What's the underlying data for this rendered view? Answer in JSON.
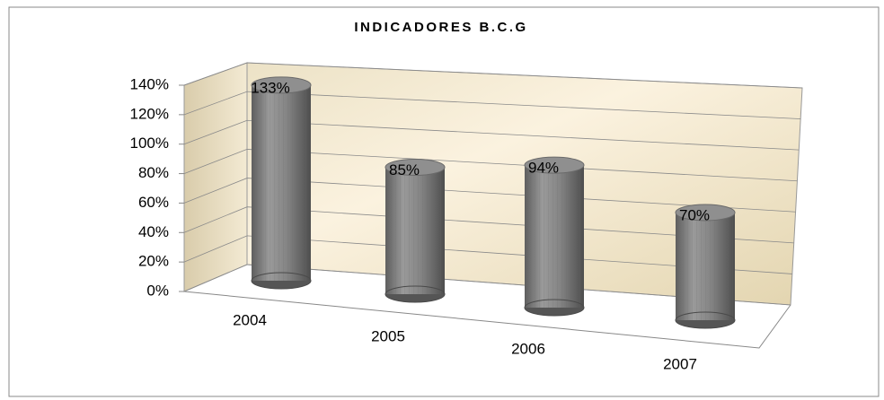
{
  "chart_data": {
    "type": "bar",
    "title": "INDICADORES B.C.G",
    "categories": [
      "2004",
      "2005",
      "2006",
      "2007"
    ],
    "values": [
      133,
      85,
      94,
      70
    ],
    "value_labels": [
      "133%",
      "85%",
      "94%",
      "70%"
    ],
    "color": "#808080",
    "ylim": [
      0,
      140
    ],
    "yticks": [
      {
        "value": 0,
        "label": "0%"
      },
      {
        "value": 20,
        "label": "20%"
      },
      {
        "value": 40,
        "label": "40%"
      },
      {
        "value": 60,
        "label": "60%"
      },
      {
        "value": 80,
        "label": "80%"
      },
      {
        "value": 100,
        "label": "100%"
      },
      {
        "value": 120,
        "label": "120%"
      },
      {
        "value": 140,
        "label": "140%"
      }
    ],
    "grid": true
  }
}
